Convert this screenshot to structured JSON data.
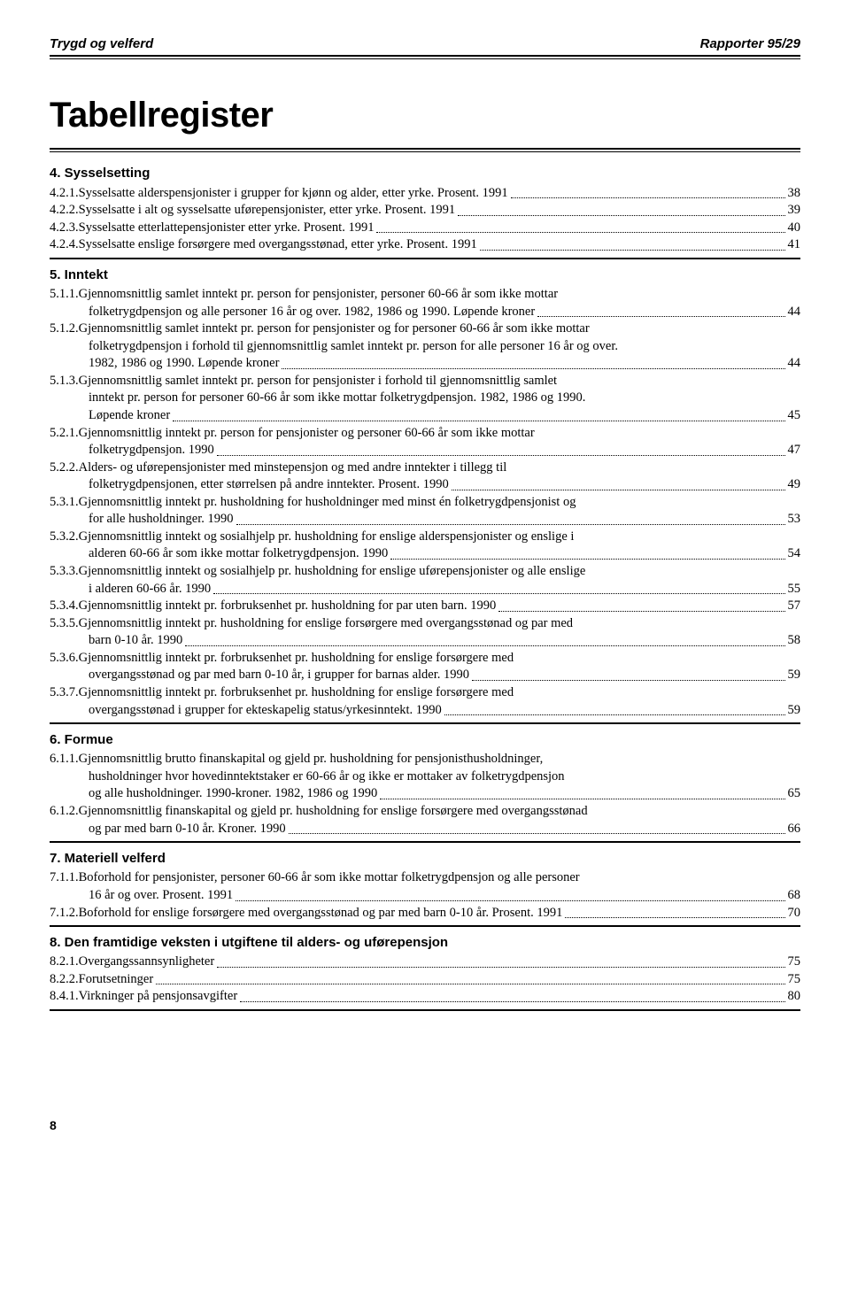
{
  "header": {
    "left": "Trygd og velferd",
    "right": "Rapporter 95/29"
  },
  "title": "Tabellregister",
  "sections": [
    {
      "head": "4. Sysselsetting",
      "entries": [
        {
          "num": "4.2.1.",
          "lines": [
            "Sysselsatte alderspensjonister i grupper for kjønn og alder, etter yrke. Prosent. 1991"
          ],
          "page": "38"
        },
        {
          "num": "4.2.2.",
          "lines": [
            "Sysselsatte i alt og sysselsatte uførepensjonister, etter yrke. Prosent. 1991"
          ],
          "page": "39"
        },
        {
          "num": "4.2.3.",
          "lines": [
            "Sysselsatte etterlattepensjonister etter yrke. Prosent. 1991"
          ],
          "page": "40"
        },
        {
          "num": "4.2.4.",
          "lines": [
            "Sysselsatte enslige forsørgere med overgangsstønad, etter yrke. Prosent. 1991"
          ],
          "page": "41"
        }
      ]
    },
    {
      "head": "5. Inntekt",
      "entries": [
        {
          "num": "5.1.1.",
          "lines": [
            "Gjennomsnittlig samlet inntekt pr. person for pensjonister, personer 60-66 år som ikke mottar",
            "folketrygdpensjon og alle personer 16 år og over. 1982, 1986 og 1990. Løpende kroner"
          ],
          "page": "44"
        },
        {
          "num": "5.1.2.",
          "lines": [
            "Gjennomsnittlig samlet inntekt pr. person for pensjonister og for personer 60-66 år som ikke mottar",
            "folketrygdpensjon i forhold til gjennomsnittlig samlet inntekt pr. person for alle personer 16 år og over.",
            "1982, 1986 og 1990. Løpende kroner"
          ],
          "page": "44"
        },
        {
          "num": "5.1.3.",
          "lines": [
            "Gjennomsnittlig samlet inntekt pr. person for pensjonister i forhold til gjennomsnittlig samlet",
            "inntekt pr. person for personer 60-66 år som ikke mottar folketrygdpensjon. 1982, 1986 og 1990.",
            "Løpende kroner"
          ],
          "page": "45"
        },
        {
          "num": "5.2.1.",
          "lines": [
            "Gjennomsnittlig inntekt pr. person for pensjonister og personer 60-66 år som ikke mottar",
            "folketrygdpensjon. 1990"
          ],
          "page": "47"
        },
        {
          "num": "5.2.2.",
          "lines": [
            "Alders- og uførepensjonister med minstepensjon og med andre inntekter i tillegg til",
            "folketrygdpensjonen, etter størrelsen på andre inntekter. Prosent. 1990"
          ],
          "page": "49"
        },
        {
          "num": "5.3.1.",
          "lines": [
            "Gjennomsnittlig inntekt pr. husholdning for husholdninger med minst én folketrygdpensjonist og",
            "for alle husholdninger. 1990"
          ],
          "page": "53"
        },
        {
          "num": "5.3.2.",
          "lines": [
            "Gjennomsnittlig inntekt og sosialhjelp pr. husholdning for enslige alderspensjonister og enslige i",
            "alderen 60-66 år som ikke mottar folketrygdpensjon. 1990"
          ],
          "page": "54"
        },
        {
          "num": "5.3.3.",
          "lines": [
            "Gjennomsnittlig inntekt og sosialhjelp pr. husholdning for enslige uførepensjonister og alle enslige",
            "i alderen 60-66 år. 1990"
          ],
          "page": "55"
        },
        {
          "num": "5.3.4.",
          "lines": [
            "Gjennomsnittlig inntekt pr. forbruksenhet pr. husholdning for par uten barn. 1990"
          ],
          "page": "57"
        },
        {
          "num": "5.3.5.",
          "lines": [
            "Gjennomsnittlig inntekt pr. husholdning for enslige forsørgere med overgangsstønad og par med",
            "barn 0-10 år. 1990"
          ],
          "page": "58"
        },
        {
          "num": "5.3.6.",
          "lines": [
            "Gjennomsnittlig inntekt pr. forbruksenhet pr. husholdning for enslige forsørgere med",
            "overgangsstønad og par med barn 0-10 år, i grupper for barnas alder. 1990"
          ],
          "page": "59"
        },
        {
          "num": "5.3.7.",
          "lines": [
            "Gjennomsnittlig inntekt pr. forbruksenhet pr. husholdning for enslige forsørgere med",
            "overgangsstønad i grupper for ekteskapelig status/yrkesinntekt. 1990"
          ],
          "page": "59"
        }
      ]
    },
    {
      "head": "6. Formue",
      "entries": [
        {
          "num": "6.1.1.",
          "lines": [
            "Gjennomsnittlig brutto finanskapital og gjeld pr. husholdning for pensjonisthusholdninger,",
            "husholdninger hvor hovedinntektstaker er 60-66 år og ikke er mottaker av folketrygdpensjon",
            "og alle husholdninger. 1990-kroner. 1982, 1986 og 1990"
          ],
          "page": "65"
        },
        {
          "num": "6.1.2.",
          "lines": [
            "Gjennomsnittlig finanskapital og gjeld pr. husholdning for enslige forsørgere med overgangsstønad",
            "og par med barn 0-10 år. Kroner. 1990"
          ],
          "page": "66"
        }
      ]
    },
    {
      "head": "7. Materiell velferd",
      "entries": [
        {
          "num": "7.1.1.",
          "lines": [
            "Boforhold for pensjonister, personer 60-66 år som ikke mottar folketrygdpensjon og alle personer",
            "16 år og over. Prosent. 1991"
          ],
          "page": "68"
        },
        {
          "num": "7.1.2.",
          "lines": [
            "Boforhold for enslige forsørgere med overgangsstønad og par med barn 0-10 år. Prosent. 1991"
          ],
          "page": "70"
        }
      ]
    },
    {
      "head": "8. Den framtidige veksten i utgiftene til alders- og uførepensjon",
      "entries": [
        {
          "num": "8.2.1.",
          "lines": [
            "Overgangssannsynligheter"
          ],
          "page": "75"
        },
        {
          "num": "8.2.2.",
          "lines": [
            "Forutsetninger"
          ],
          "page": "75"
        },
        {
          "num": "8.4.1.",
          "lines": [
            "Virkninger på pensjonsavgifter"
          ],
          "page": "80"
        }
      ]
    }
  ],
  "footer_page": "8"
}
